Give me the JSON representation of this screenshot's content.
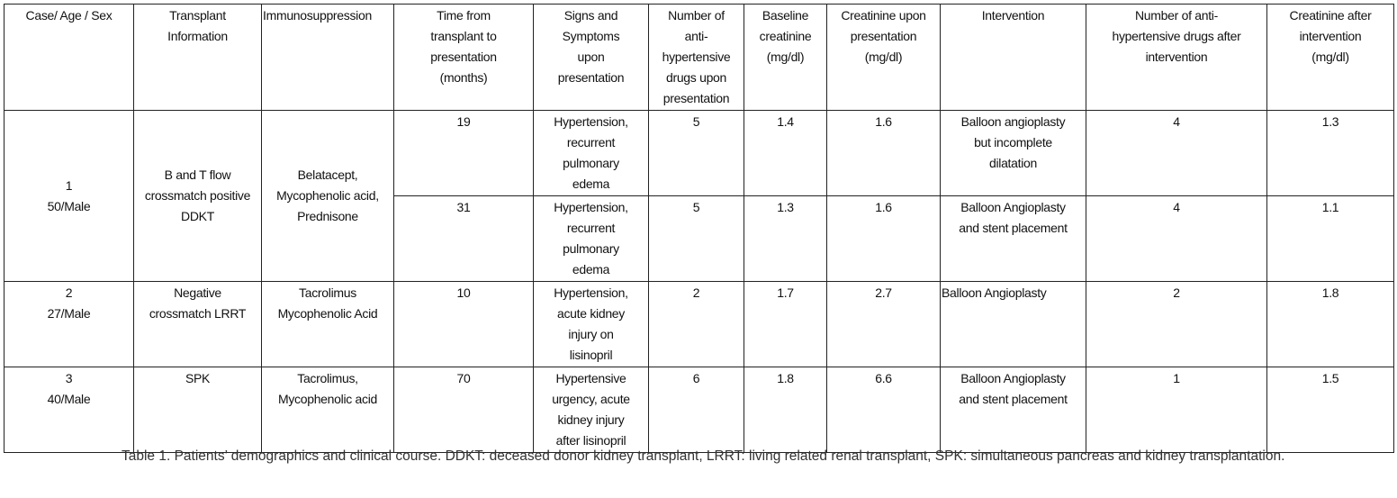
{
  "table": {
    "headers": [
      "Case/ Age / Sex",
      "Transplant\nInformation",
      "Immunosuppression",
      "Time from\ntransplant to\npresentation\n(months)",
      "Signs and\nSymptoms\nupon\npresentation",
      "Number of\nanti-\nhypertensive\ndrugs upon\npresentation",
      "Baseline\ncreatinine\n(mg/dl)",
      "Creatinine upon\npresentation\n(mg/dl)",
      "Intervention",
      "Number of anti-\nhypertensive drugs after\nintervention",
      "Creatinine after\nintervention\n(mg/dl)"
    ],
    "case1": {
      "case": "1\n50/Male",
      "transplant": "B and T flow\ncrossmatch positive\nDDKT",
      "immuno": "Belatacept,\nMycophenolic acid,\nPrednisone",
      "episodes": [
        {
          "time": "19",
          "signs": "Hypertension,\nrecurrent\npulmonary\nedema",
          "drugs_before": "5",
          "baseline": "1.4",
          "creat_pres": "1.6",
          "intervention": "Balloon angioplasty\nbut incomplete\ndilatation",
          "drugs_after": "4",
          "creat_after": "1.3"
        },
        {
          "time": "31",
          "signs": "Hypertension,\nrecurrent\npulmonary\nedema",
          "drugs_before": "5",
          "baseline": "1.3",
          "creat_pres": "1.6",
          "intervention": "Balloon Angioplasty\nand stent placement",
          "drugs_after": "4",
          "creat_after": "1.1"
        }
      ]
    },
    "case2": {
      "case": "2\n27/Male",
      "transplant": "Negative\ncrossmatch LRRT",
      "immuno": "Tacrolimus\nMycophenolic Acid",
      "time": "10",
      "signs": "Hypertension,\nacute kidney\ninjury on\nlisinopril",
      "drugs_before": "2",
      "baseline": "1.7",
      "creat_pres": "2.7",
      "intervention": "Balloon Angioplasty",
      "drugs_after": "2",
      "creat_after": "1.8"
    },
    "case3": {
      "case": "3\n40/Male",
      "transplant": "SPK",
      "immuno": "Tacrolimus,\nMycophenolic acid",
      "time": "70",
      "signs": "Hypertensive\nurgency, acute\nkidney injury\nafter lisinopril",
      "drugs_before": "6",
      "baseline": "1.8",
      "creat_pres": "6.6",
      "intervention": "Balloon Angioplasty\nand stent placement",
      "drugs_after": "1",
      "creat_after": "1.5"
    }
  },
  "caption": "Table 1. Patients’ demographics and clinical course. DDKT: deceased donor kidney transplant, LRRT: living related renal transplant, SPK: simultaneous pancreas and kidney transplantation."
}
